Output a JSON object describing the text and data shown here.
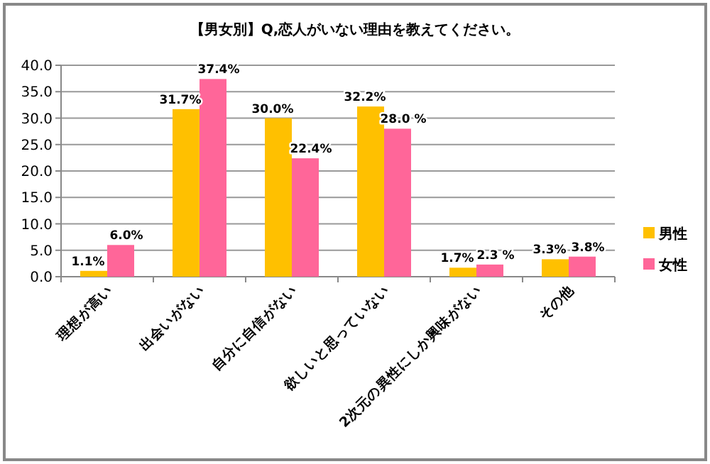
{
  "chart_data": {
    "type": "bar",
    "title": "【男女別】Q,恋人がいない理由を教えてください。",
    "categories": [
      "理想が高い",
      "出会いがない",
      "自分に自信がない",
      "欲しいと思っていない",
      "2次元の異性にしか興味がない",
      "その他"
    ],
    "series": [
      {
        "name": "男性",
        "color": "#ffc000",
        "values": [
          1.1,
          31.7,
          30.0,
          32.2,
          1.7,
          3.3
        ],
        "value_labels": [
          "1.1%",
          "31.7%",
          "30.0%",
          "32.2%",
          "1.7%",
          "3.3%"
        ]
      },
      {
        "name": "女性",
        "color": "#ff6699",
        "values": [
          6.0,
          37.4,
          22.4,
          28.0,
          2.3,
          3.8
        ],
        "value_labels": [
          "6.0%",
          "37.4%",
          "22.4%",
          "28.0 %",
          "2.3 %",
          "3.8%"
        ]
      }
    ],
    "ylim": [
      0,
      40
    ],
    "yticks": [
      {
        "value": 0,
        "label": "0.0"
      },
      {
        "value": 5,
        "label": "5.0"
      },
      {
        "value": 10,
        "label": "10.0"
      },
      {
        "value": 15,
        "label": "15.0"
      },
      {
        "value": 20,
        "label": "20.0"
      },
      {
        "value": 25,
        "label": "25.0"
      },
      {
        "value": 30,
        "label": "30.0"
      },
      {
        "value": 35,
        "label": "35.0"
      },
      {
        "value": 40,
        "label": "40.0"
      }
    ],
    "grid": "y",
    "legend": "right"
  }
}
